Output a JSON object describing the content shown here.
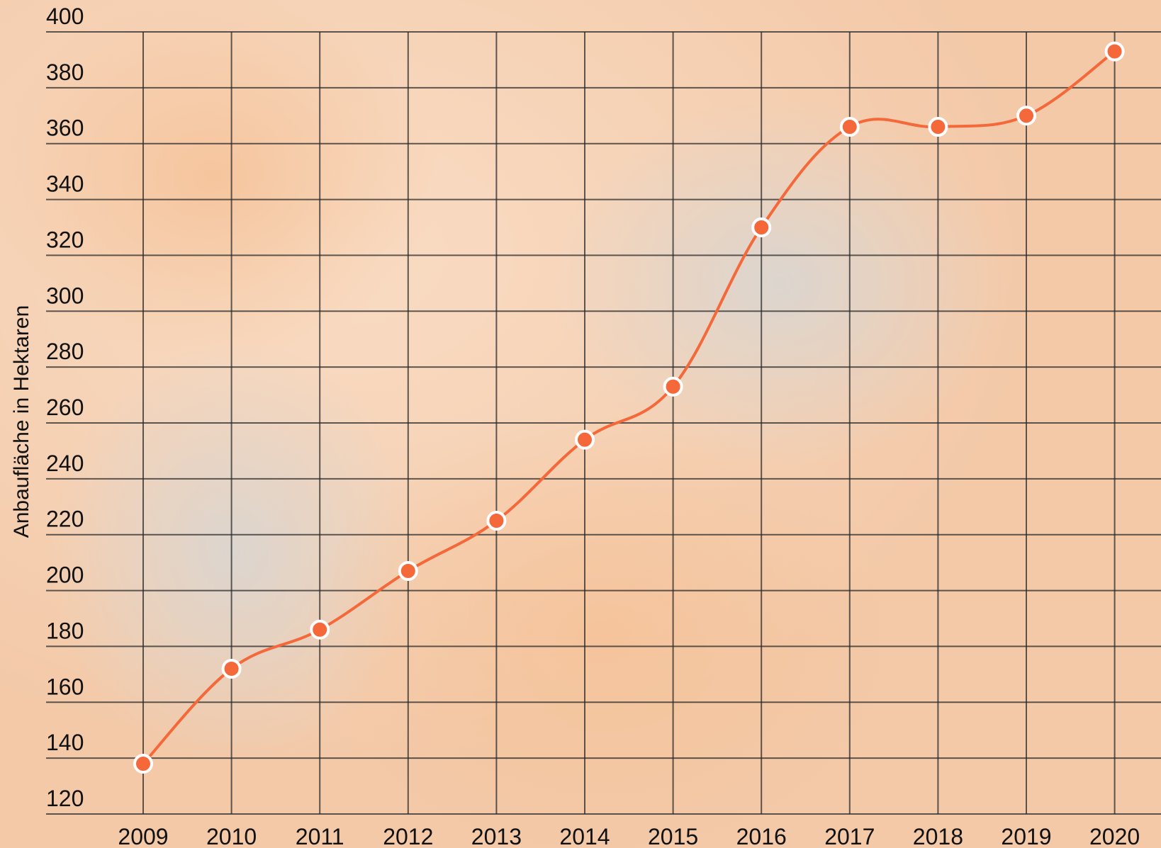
{
  "chart_data": {
    "type": "line",
    "y_label": "Anbaufläche in Hektaren",
    "x": [
      "2009",
      "2010",
      "2011",
      "2012",
      "2013",
      "2014",
      "2015",
      "2016",
      "2017",
      "2018",
      "2019",
      "2020"
    ],
    "series": [
      {
        "color": "#f4683a",
        "values": [
          138,
          172,
          186,
          207,
          225,
          254,
          273,
          330,
          366,
          366,
          370,
          393
        ]
      }
    ],
    "ylim": [
      120,
      400
    ],
    "yticks": [
      120,
      140,
      160,
      180,
      200,
      220,
      240,
      260,
      280,
      300,
      320,
      340,
      360,
      380,
      400
    ],
    "grid": true
  }
}
